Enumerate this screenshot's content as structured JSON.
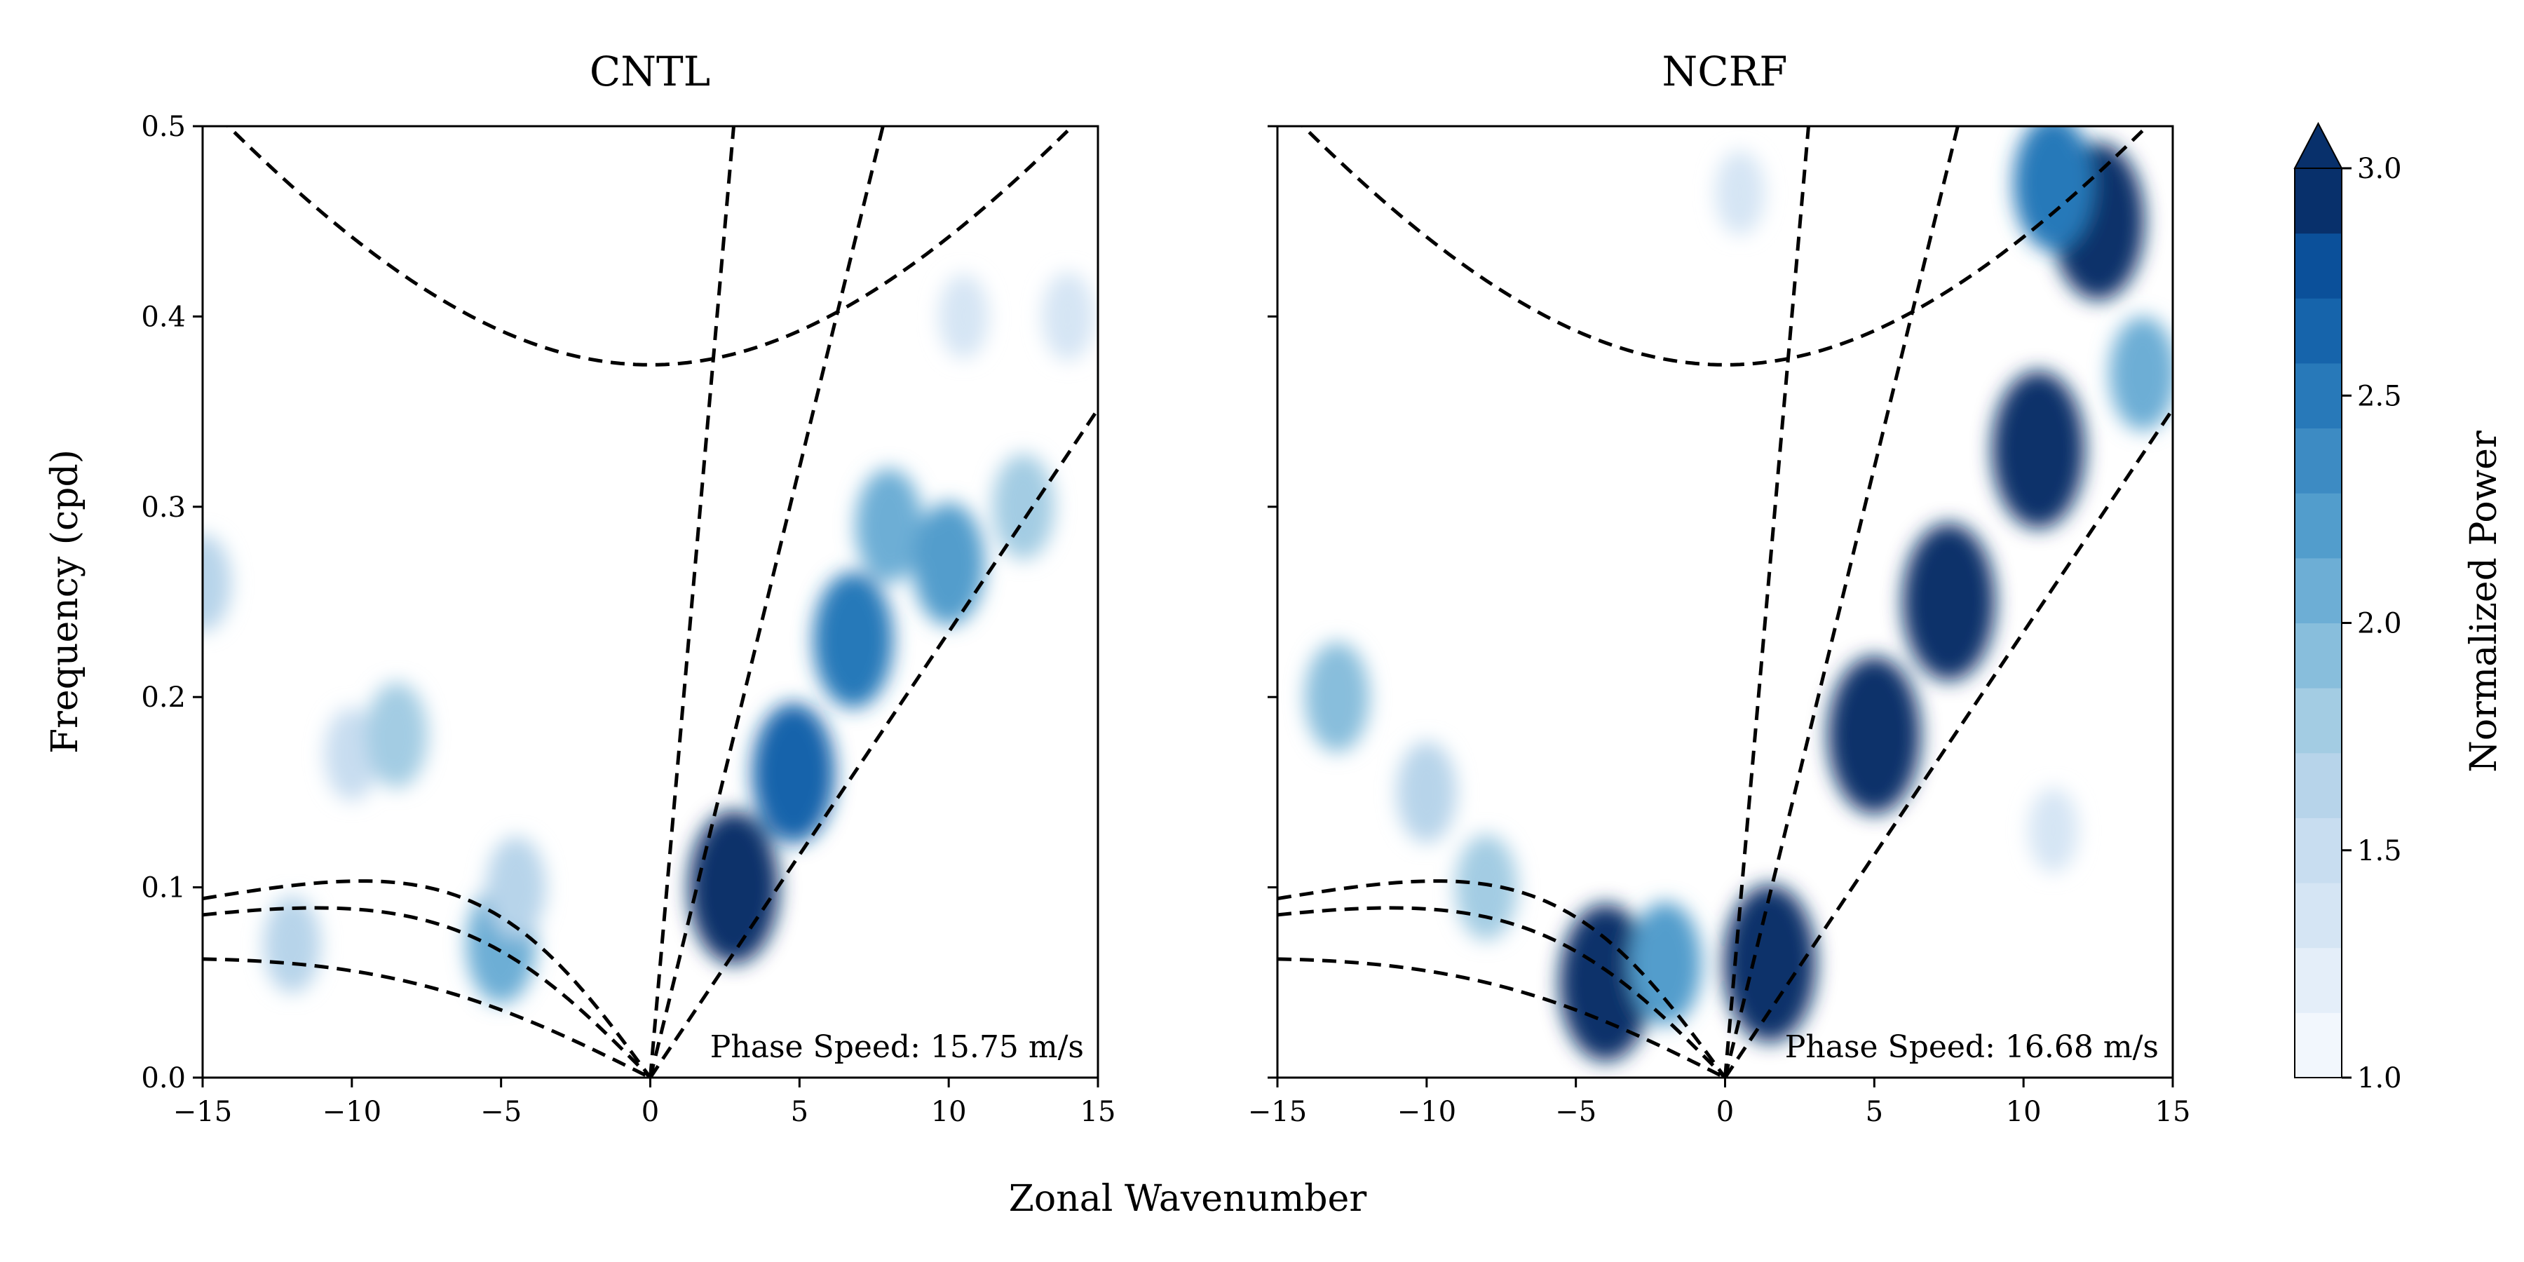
{
  "figure": {
    "xlabel": "Zonal Wavenumber",
    "ylabel": "Frequency (cpd)"
  },
  "colorbar": {
    "label": "Normalized Power",
    "min": 1.0,
    "max": 3.0,
    "extend": "max",
    "ticks": [
      "1.0",
      "1.5",
      "2.0",
      "2.5",
      "3.0"
    ],
    "tick_values": [
      1.0,
      1.5,
      2.0,
      2.5,
      3.0
    ],
    "colors": [
      "#f2f7fd",
      "#e4eef9",
      "#d5e5f4",
      "#c8ddf0",
      "#b7d4ea",
      "#a3cce3",
      "#88bedc",
      "#6daed5",
      "#529dcc",
      "#3d8bc3",
      "#2879b9",
      "#1664ab",
      "#0b509a",
      "#08306b"
    ]
  },
  "chart_data": [
    {
      "type": "heatmap",
      "title": "CNTL",
      "annotation": "Phase Speed: 15.75 m/s",
      "xlim": [
        -15,
        15
      ],
      "ylim": [
        0.0,
        0.5
      ],
      "xticks": [
        "−15",
        "−10",
        "−5",
        "0",
        "5",
        "10",
        "15"
      ],
      "xtick_values": [
        -15,
        -10,
        -5,
        0,
        5,
        10,
        15
      ],
      "yticks": [
        "0.0",
        "0.1",
        "0.2",
        "0.3",
        "0.4",
        "0.5"
      ],
      "ytick_values": [
        0.0,
        0.1,
        0.2,
        0.3,
        0.4,
        0.5
      ],
      "blobs": [
        {
          "x": -15,
          "y": 0.26,
          "value": 1.6
        },
        {
          "x": -10,
          "y": 0.17,
          "value": 1.5
        },
        {
          "x": -8.5,
          "y": 0.18,
          "value": 1.8
        },
        {
          "x": -12,
          "y": 0.07,
          "value": 1.6
        },
        {
          "x": -5,
          "y": 0.07,
          "value": 2.1
        },
        {
          "x": -4.5,
          "y": 0.1,
          "value": 1.7
        },
        {
          "x": 2.8,
          "y": 0.1,
          "value": 2.9
        },
        {
          "x": 4.8,
          "y": 0.16,
          "value": 2.6
        },
        {
          "x": 6.8,
          "y": 0.23,
          "value": 2.5
        },
        {
          "x": 8,
          "y": 0.29,
          "value": 2.0
        },
        {
          "x": 10,
          "y": 0.27,
          "value": 2.2
        },
        {
          "x": 12.5,
          "y": 0.3,
          "value": 1.8
        },
        {
          "x": 14,
          "y": 0.4,
          "value": 1.4
        },
        {
          "x": 10.5,
          "y": 0.4,
          "value": 1.3
        }
      ]
    },
    {
      "type": "heatmap",
      "title": "NCRF",
      "annotation": "Phase Speed: 16.68 m/s",
      "xlim": [
        -15,
        15
      ],
      "ylim": [
        0.0,
        0.5
      ],
      "xticks": [
        "−15",
        "−10",
        "−5",
        "0",
        "5",
        "10",
        "15"
      ],
      "xtick_values": [
        -15,
        -10,
        -5,
        0,
        5,
        10,
        15
      ],
      "yticks": [],
      "ytick_values": [
        0.0,
        0.1,
        0.2,
        0.3,
        0.4,
        0.5
      ],
      "blobs": [
        {
          "x": -13,
          "y": 0.2,
          "value": 1.9
        },
        {
          "x": -10,
          "y": 0.15,
          "value": 1.7
        },
        {
          "x": -8,
          "y": 0.1,
          "value": 1.8
        },
        {
          "x": -4,
          "y": 0.05,
          "value": 3.0
        },
        {
          "x": -2,
          "y": 0.06,
          "value": 2.2
        },
        {
          "x": 1.5,
          "y": 0.06,
          "value": 3.0
        },
        {
          "x": 5,
          "y": 0.18,
          "value": 3.0
        },
        {
          "x": 7.5,
          "y": 0.25,
          "value": 3.0
        },
        {
          "x": 10.5,
          "y": 0.33,
          "value": 3.0
        },
        {
          "x": 12.5,
          "y": 0.45,
          "value": 3.0
        },
        {
          "x": 14,
          "y": 0.37,
          "value": 2.0
        },
        {
          "x": 11,
          "y": 0.47,
          "value": 2.5
        },
        {
          "x": 0.5,
          "y": 0.465,
          "value": 1.3
        },
        {
          "x": 11,
          "y": 0.13,
          "value": 1.3
        }
      ]
    }
  ]
}
